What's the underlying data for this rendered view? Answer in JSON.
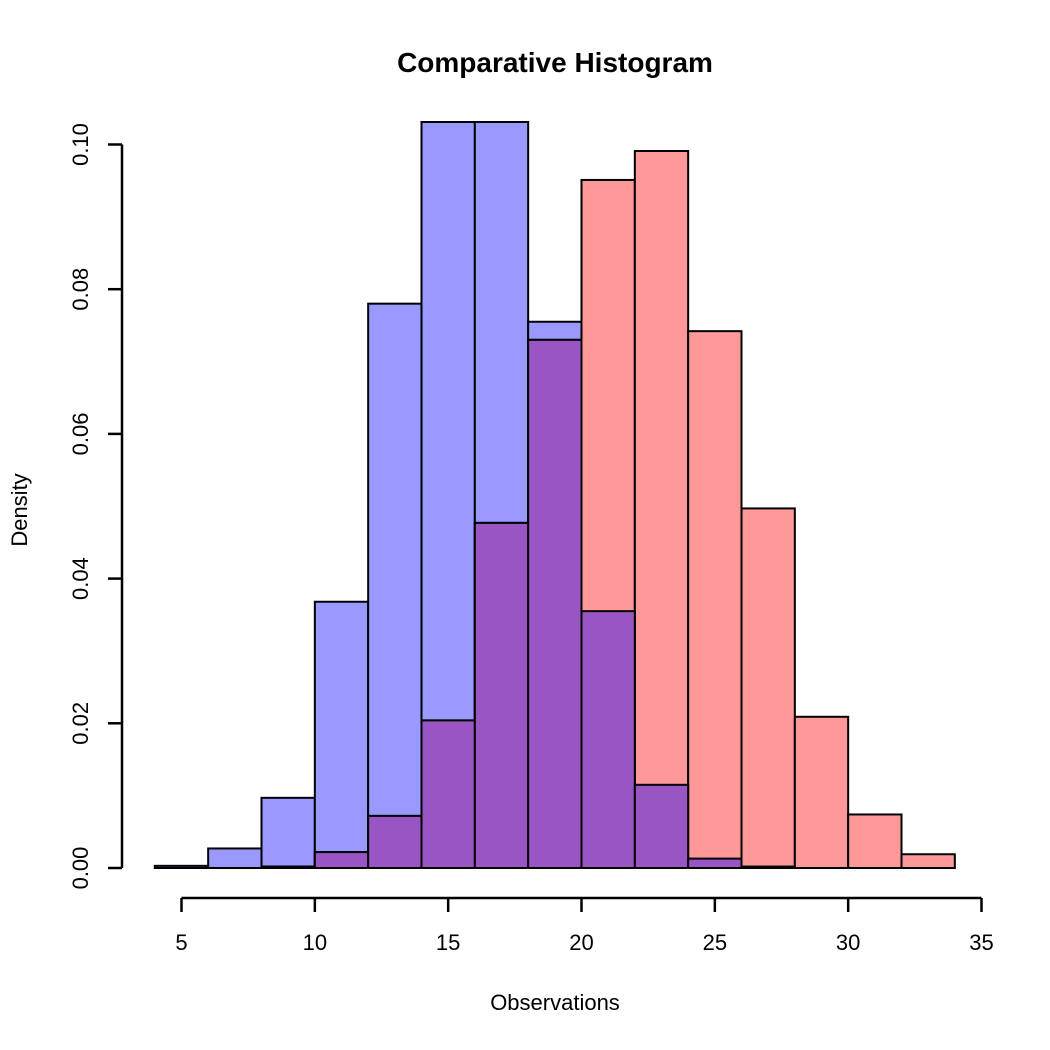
{
  "chart_data": {
    "type": "bar",
    "title": "Comparative Histogram",
    "xlabel": "Observations",
    "ylabel": "Density",
    "xlim": [
      4,
      34
    ],
    "ylim": [
      0,
      0.1
    ],
    "x_ticks": [
      5,
      10,
      15,
      20,
      25,
      30,
      35
    ],
    "y_ticks": [
      0.0,
      0.02,
      0.04,
      0.06,
      0.08,
      0.1
    ],
    "y_tick_labels": [
      "0.00",
      "0.02",
      "0.04",
      "0.06",
      "0.08",
      "0.10"
    ],
    "grid": false,
    "bin_edges": [
      4,
      6,
      8,
      10,
      12,
      14,
      16,
      18,
      20,
      22,
      24,
      26,
      28,
      30,
      32,
      34
    ],
    "series": [
      {
        "color": "#9999ff",
        "values": [
          0.0003,
          0.0027,
          0.0097,
          0.0368,
          0.078,
          0.106,
          0.106,
          0.0755,
          0.0355,
          0.0115,
          0.0013,
          0.0002,
          0,
          0,
          0
        ]
      },
      {
        "color": "#ff9999",
        "values": [
          0,
          0,
          0.0002,
          0.0022,
          0.0072,
          0.0204,
          0.0477,
          0.073,
          0.0951,
          0.0991,
          0.0742,
          0.0497,
          0.0209,
          0.0074,
          0.0019
        ]
      }
    ],
    "overlap_color": "#9955c3"
  }
}
